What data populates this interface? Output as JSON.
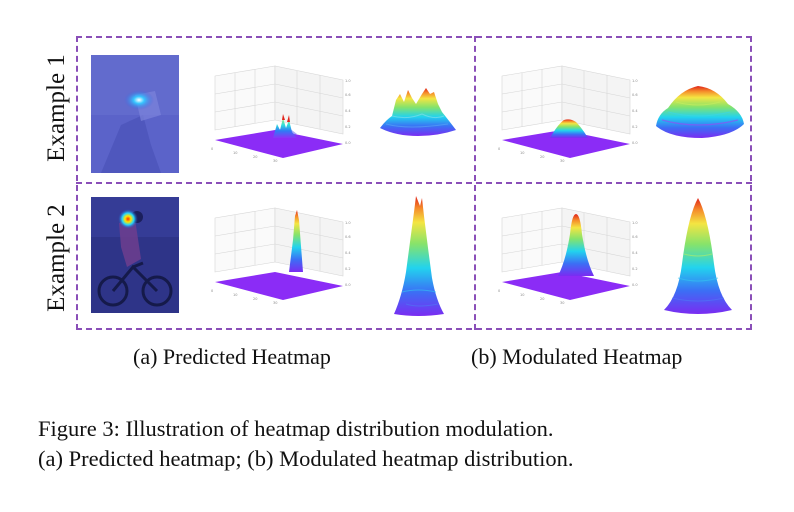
{
  "rows": [
    {
      "label": "Example 1"
    },
    {
      "label": "Example 2"
    }
  ],
  "subcaptions": {
    "a": "(a) Predicted Heatmap",
    "b": "(b) Modulated Heatmap"
  },
  "caption": {
    "line1": "Figure 3:  Illustration of heatmap distribution modulation.",
    "line2": "(a) Predicted heatmap; (b) Modulated heatmap distribution."
  },
  "colors": {
    "border": "#8a4fb8",
    "surface_base": "#8b2cf6",
    "overlay": "#4b55c8"
  }
}
